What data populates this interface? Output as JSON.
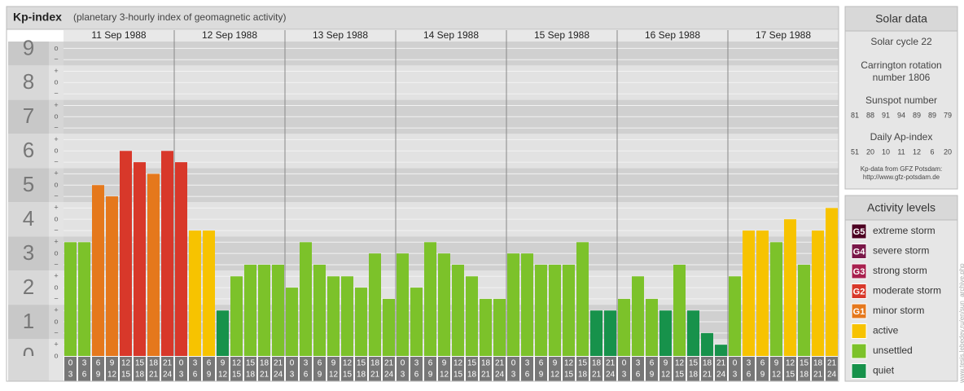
{
  "chart_data": {
    "type": "bar",
    "title": "Kp-index",
    "subtitle": "(planetary 3-hourly index of geomagnetic activity)",
    "ylim": [
      0,
      9.2
    ],
    "yticks": [
      0,
      1,
      2,
      3,
      4,
      5,
      6,
      7,
      8,
      9
    ],
    "minor_ticks": [
      {
        "value": 0,
        "label": "o"
      },
      {
        "value": 0.33,
        "label": "+"
      },
      {
        "value": 0.67,
        "label": "−"
      },
      {
        "value": 1,
        "label": "o"
      },
      {
        "value": 1.33,
        "label": "+"
      },
      {
        "value": 1.67,
        "label": "−"
      },
      {
        "value": 2,
        "label": "o"
      },
      {
        "value": 2.33,
        "label": "+"
      },
      {
        "value": 2.67,
        "label": "−"
      },
      {
        "value": 3,
        "label": "o"
      },
      {
        "value": 3.33,
        "label": "+"
      },
      {
        "value": 3.67,
        "label": "−"
      },
      {
        "value": 4,
        "label": "o"
      },
      {
        "value": 4.33,
        "label": "+"
      },
      {
        "value": 4.67,
        "label": "−"
      },
      {
        "value": 5,
        "label": "o"
      },
      {
        "value": 5.33,
        "label": "+"
      },
      {
        "value": 5.67,
        "label": "−"
      },
      {
        "value": 6,
        "label": "o"
      },
      {
        "value": 6.33,
        "label": "+"
      },
      {
        "value": 6.67,
        "label": "−"
      },
      {
        "value": 7,
        "label": "o"
      },
      {
        "value": 7.33,
        "label": "+"
      },
      {
        "value": 7.67,
        "label": "−"
      },
      {
        "value": 8,
        "label": "o"
      },
      {
        "value": 8.33,
        "label": "+"
      },
      {
        "value": 8.67,
        "label": "−"
      },
      {
        "value": 9,
        "label": "o"
      }
    ],
    "hours": [
      [
        "0",
        "3"
      ],
      [
        "3",
        "6"
      ],
      [
        "6",
        "9"
      ],
      [
        "9",
        "12"
      ],
      [
        "12",
        "15"
      ],
      [
        "15",
        "18"
      ],
      [
        "18",
        "21"
      ],
      [
        "21",
        "24"
      ]
    ],
    "days": [
      {
        "date": "11 Sep 1988",
        "values": [
          3.33,
          3.33,
          5,
          4.67,
          6,
          5.67,
          5.33,
          6
        ],
        "colors": [
          "#7cc22a",
          "#7cc22a",
          "#e5781c",
          "#e5781c",
          "#d8382a",
          "#d8382a",
          "#e5781c",
          "#d8382a"
        ]
      },
      {
        "date": "12 Sep 1988",
        "values": [
          5.67,
          3.67,
          3.67,
          1.33,
          2.33,
          2.67,
          2.67,
          2.67
        ],
        "colors": [
          "#d8382a",
          "#f7c300",
          "#f7c300",
          "#17924b",
          "#7cc22a",
          "#7cc22a",
          "#7cc22a",
          "#7cc22a"
        ]
      },
      {
        "date": "13 Sep 1988",
        "values": [
          2,
          3.33,
          2.67,
          2.33,
          2.33,
          2,
          3,
          1.67
        ],
        "colors": [
          "#7cc22a",
          "#7cc22a",
          "#7cc22a",
          "#7cc22a",
          "#7cc22a",
          "#7cc22a",
          "#7cc22a",
          "#7cc22a"
        ]
      },
      {
        "date": "14 Sep 1988",
        "values": [
          3,
          2,
          3.33,
          3,
          2.67,
          2.33,
          1.67,
          1.67
        ],
        "colors": [
          "#7cc22a",
          "#7cc22a",
          "#7cc22a",
          "#7cc22a",
          "#7cc22a",
          "#7cc22a",
          "#7cc22a",
          "#7cc22a"
        ]
      },
      {
        "date": "15 Sep 1988",
        "values": [
          3,
          3,
          2.67,
          2.67,
          2.67,
          3.33,
          1.33,
          1.33
        ],
        "colors": [
          "#7cc22a",
          "#7cc22a",
          "#7cc22a",
          "#7cc22a",
          "#7cc22a",
          "#7cc22a",
          "#17924b",
          "#17924b"
        ]
      },
      {
        "date": "16 Sep 1988",
        "values": [
          1.67,
          2.33,
          1.67,
          1.33,
          2.67,
          1.33,
          0.67,
          0.33
        ],
        "colors": [
          "#7cc22a",
          "#7cc22a",
          "#7cc22a",
          "#17924b",
          "#7cc22a",
          "#17924b",
          "#17924b",
          "#17924b"
        ]
      },
      {
        "date": "17 Sep 1988",
        "values": [
          2.33,
          3.67,
          3.67,
          3.33,
          4,
          2.67,
          3.67,
          4.33
        ],
        "colors": [
          "#7cc22a",
          "#f7c300",
          "#f7c300",
          "#7cc22a",
          "#f7c300",
          "#7cc22a",
          "#f7c300",
          "#f7c300"
        ]
      }
    ]
  },
  "solar": {
    "title": "Solar data",
    "cycle": "Solar cycle 22",
    "carrington": [
      "Carrington rotation",
      "number 1806"
    ],
    "sunspot_title": "Sunspot number",
    "sunspot": [
      81,
      88,
      91,
      94,
      89,
      89,
      79
    ],
    "ap_title": "Daily Ap-index",
    "ap": [
      51,
      20,
      10,
      11,
      12,
      6,
      20
    ],
    "source": [
      "Kp-data from GFZ Potsdam:",
      "http://www.gfz-potsdam.de"
    ]
  },
  "levels": {
    "title": "Activity levels",
    "items": [
      {
        "badge": "G5",
        "label": "extreme storm",
        "color": "#4d0022"
      },
      {
        "badge": "G4",
        "label": "severe storm",
        "color": "#7a1748"
      },
      {
        "badge": "G3",
        "label": "strong storm",
        "color": "#a8204e"
      },
      {
        "badge": "G2",
        "label": "moderate storm",
        "color": "#d8382a"
      },
      {
        "badge": "G1",
        "label": "minor storm",
        "color": "#e5781c"
      },
      {
        "label": "active",
        "color": "#f7c300"
      },
      {
        "label": "unsettled",
        "color": "#7cc22a"
      },
      {
        "label": "quiet",
        "color": "#17924b"
      }
    ]
  },
  "watermark": "www.tesis.lebedev.ru/en/sun_archive.php"
}
